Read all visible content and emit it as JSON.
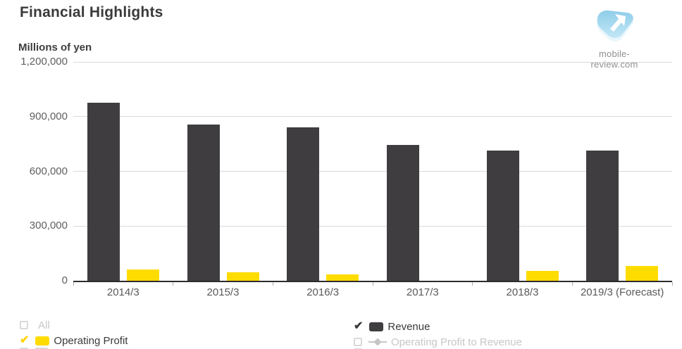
{
  "header": {
    "title": "Financial Highlights",
    "brand": "mobile-review.com"
  },
  "chart_data": {
    "type": "bar",
    "title": "Financial Highlights",
    "xlabel": "",
    "ylabel": "Millions of yen",
    "categories": [
      "2014/3",
      "2015/3",
      "2016/3",
      "2017/3",
      "2018/3",
      "2019/3 (Forecast)"
    ],
    "series": [
      {
        "name": "Revenue",
        "color": "#3f3d40",
        "values": [
          975000,
          855000,
          840000,
          745000,
          715000,
          715000
        ]
      },
      {
        "name": "Operating Profit",
        "color": "#ffdc00",
        "values": [
          63000,
          45000,
          36000,
          0,
          55000,
          82000
        ]
      }
    ],
    "ylim": [
      0,
      1200000
    ],
    "yticks": [
      0,
      300000,
      600000,
      900000,
      1200000
    ],
    "ytick_labels": [
      "0",
      "300,000",
      "600,000",
      "900,000",
      "1,200,000"
    ],
    "grid": "horizontal-only",
    "legend_position": "bottom"
  },
  "legend": {
    "columns": [
      {
        "items": [
          {
            "label": "All",
            "checked": false,
            "enabled": false,
            "swatch": "none",
            "color": "",
            "check_color": ""
          },
          {
            "label": "Operating Profit",
            "checked": true,
            "enabled": true,
            "swatch": "rect",
            "color": "#ffdc00",
            "check_color": "#ffd400"
          },
          {
            "label": "",
            "checked": false,
            "enabled": false,
            "swatch": "rect",
            "color": "#d9d9d9",
            "check_color": "",
            "partial": true
          }
        ]
      },
      {
        "items": [
          {
            "label": "Revenue",
            "checked": true,
            "enabled": true,
            "swatch": "rect",
            "color": "#3f3d40",
            "check_color": "#3f3d40"
          },
          {
            "label": "Operating Profit to Revenue",
            "checked": false,
            "enabled": false,
            "swatch": "line-marker",
            "color": "#c6c6c6",
            "check_color": ""
          },
          {
            "label": "",
            "checked": false,
            "enabled": false,
            "swatch": "none",
            "color": "",
            "check_color": "",
            "partial": true
          }
        ]
      }
    ]
  },
  "colors": {
    "revenue_bar": "#3f3d40",
    "operating_profit_bar": "#ffdc00",
    "gridline": "#d9d9d9",
    "axis_line": "#2d2b2e",
    "tick_label": "#5a5a5a",
    "title_text": "#3a3a3a",
    "legend_disabled": "#c7c7c7",
    "brand_text": "#8f8f8f",
    "logo_blue": "#8fcde9"
  }
}
